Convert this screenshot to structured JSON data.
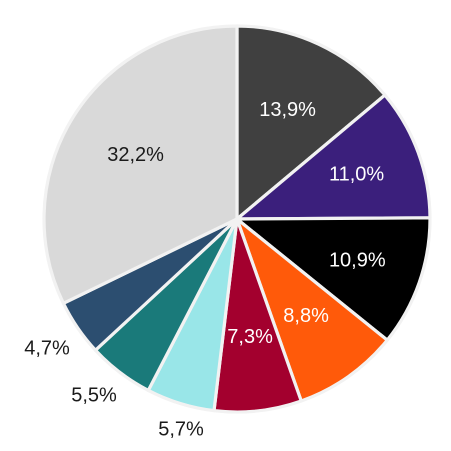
{
  "chart_data": {
    "type": "pie",
    "title": "",
    "slices": [
      {
        "label": "13,9%",
        "value": 13.9,
        "color": "#404040",
        "label_color": "#ffffff"
      },
      {
        "label": "11,0%",
        "value": 11.0,
        "color": "#3b1f7c",
        "label_color": "#ffffff"
      },
      {
        "label": "10,9%",
        "value": 10.9,
        "color": "#000000",
        "label_color": "#ffffff"
      },
      {
        "label": "8,8%",
        "value": 8.8,
        "color": "#ff5a0a",
        "label_color": "#ffffff"
      },
      {
        "label": "7,3%",
        "value": 7.3,
        "color": "#a3002e",
        "label_color": "#ffffff"
      },
      {
        "label": "5,7%",
        "value": 5.7,
        "color": "#99e6e8",
        "label_color": "#1a1a1a"
      },
      {
        "label": "5,5%",
        "value": 5.5,
        "color": "#1a7a7a",
        "label_color": "#1a1a1a"
      },
      {
        "label": "4,7%",
        "value": 4.7,
        "color": "#2c4e70",
        "label_color": "#1a1a1a"
      },
      {
        "label": "32,2%",
        "value": 32.2,
        "color": "#d9d9d9",
        "label_color": "#1a1a1a"
      }
    ],
    "start_angle": "12 o'clock",
    "direction": "clockwise",
    "legend": "none"
  }
}
